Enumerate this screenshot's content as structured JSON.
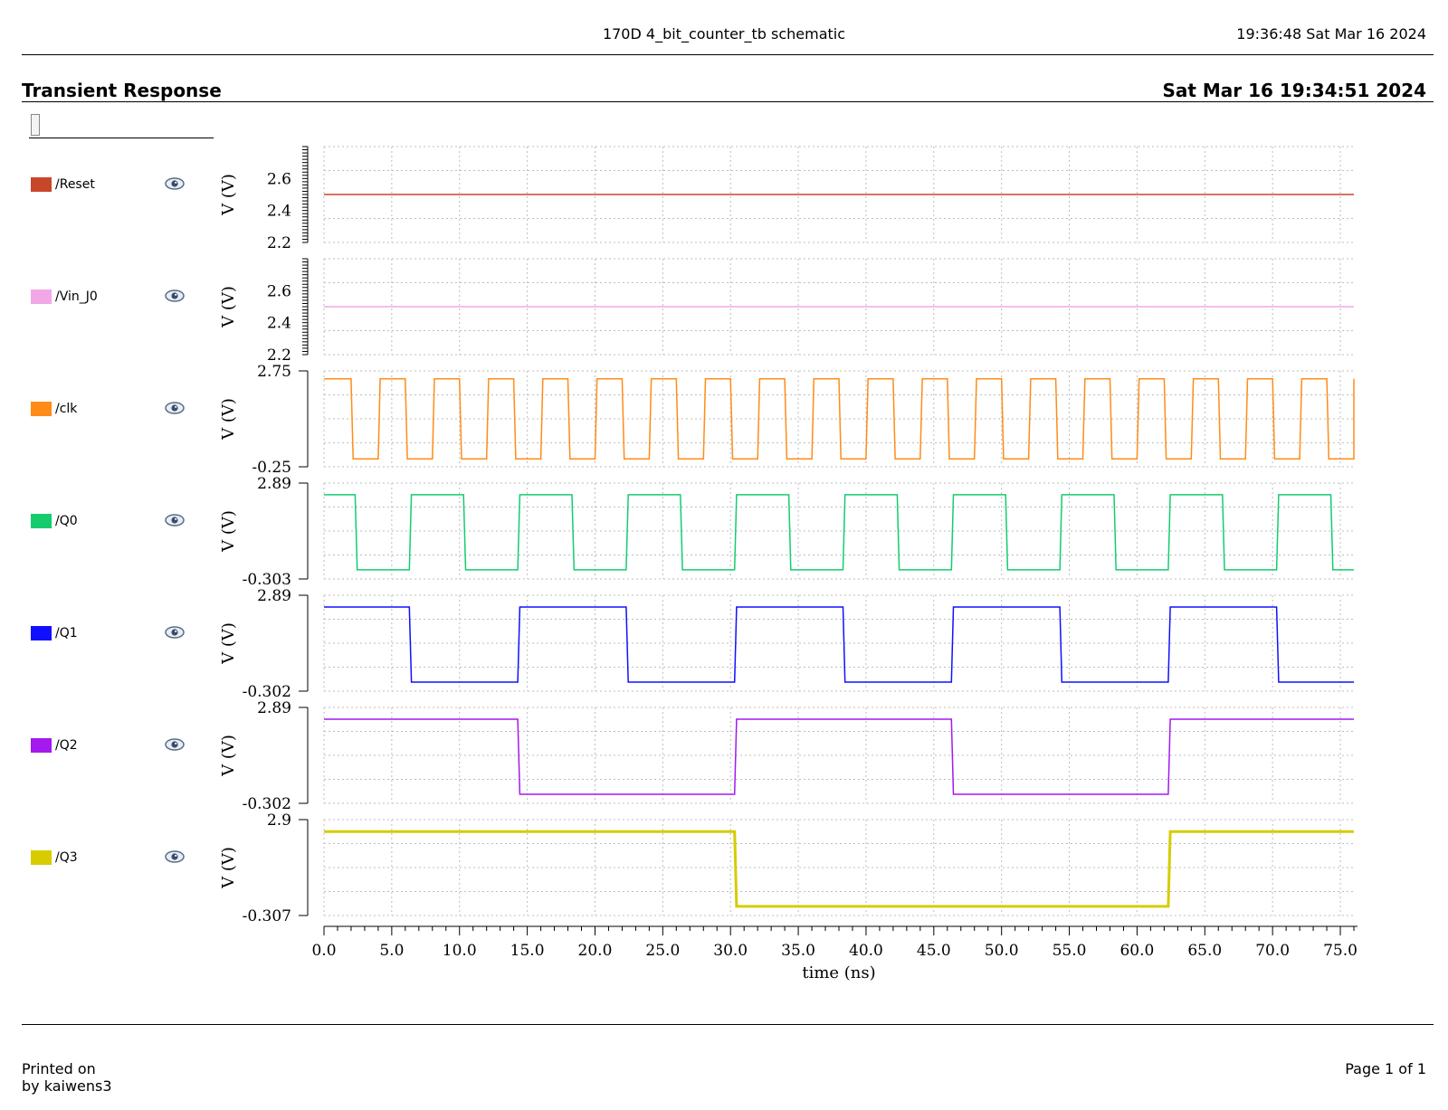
{
  "header": {
    "title": "170D 4_bit_counter_tb schematic",
    "timestamp": "19:36:48  Sat Mar 16 2024"
  },
  "panel": {
    "title": "Transient Response",
    "date": "Sat Mar 16 19:34:51 2024"
  },
  "footer": {
    "printed_on": "Printed on",
    "printed_by": "by kaiwens3",
    "page": "Page 1 of 1"
  },
  "chart_data": {
    "type": "line",
    "xlabel": "time (ns)",
    "xlim": [
      0,
      76
    ],
    "xticks": [
      "0.0",
      "5.0",
      "10.0",
      "15.0",
      "20.0",
      "25.0",
      "30.0",
      "35.0",
      "40.0",
      "45.0",
      "50.0",
      "55.0",
      "60.0",
      "65.0",
      "70.0",
      "75.0"
    ],
    "xtick_values": [
      0,
      5,
      10,
      15,
      20,
      25,
      30,
      35,
      40,
      45,
      50,
      55,
      60,
      65,
      70,
      75
    ],
    "grid": true,
    "legend": "left",
    "series": [
      {
        "name": "/Reset",
        "color": "#c8472b",
        "ylabel": "V (V)",
        "ylim": [
          2.2,
          2.8
        ],
        "ytick_labels": [
          "2.2",
          "2.4",
          "2.6"
        ],
        "ytick_values": [
          2.2,
          2.4,
          2.6
        ],
        "high": 2.5,
        "low": 2.5,
        "transitions": [],
        "start": "high"
      },
      {
        "name": "/Vin_J0",
        "color": "#f2a8e6",
        "ylabel": "V (V)",
        "ylim": [
          2.2,
          2.8
        ],
        "ytick_labels": [
          "2.2",
          "2.4",
          "2.6"
        ],
        "ytick_values": [
          2.2,
          2.4,
          2.6
        ],
        "high": 2.5,
        "low": 2.5,
        "transitions": [],
        "start": "high"
      },
      {
        "name": "/clk",
        "color": "#ff8c19",
        "ylabel": "V (V)",
        "ylim": [
          -0.25,
          2.75
        ],
        "ytick_labels": [
          "-0.25",
          "2.75"
        ],
        "ytick_values": [
          -0.25,
          2.75
        ],
        "high": 2.5,
        "low": 0,
        "transitions": [
          2,
          4,
          6,
          8,
          10,
          12,
          14,
          16,
          18,
          20,
          22,
          24,
          26,
          28,
          30,
          32,
          34,
          36,
          38,
          40,
          42,
          44,
          46,
          48,
          50,
          52,
          54,
          56,
          58,
          60,
          62,
          64,
          66,
          68,
          70,
          72,
          74,
          76
        ],
        "start": "high"
      },
      {
        "name": "/Q0",
        "color": "#14cc6e",
        "ylabel": "V (V)",
        "ylim": [
          -0.303,
          2.89
        ],
        "ytick_labels": [
          "-0.303",
          "2.89"
        ],
        "ytick_values": [
          -0.303,
          2.89
        ],
        "high": 2.5,
        "low": 0,
        "transitions": [
          2.3,
          6.3,
          10.3,
          14.3,
          18.3,
          22.3,
          26.3,
          30.3,
          34.3,
          38.3,
          42.3,
          46.3,
          50.3,
          54.3,
          58.3,
          62.3,
          66.3,
          70.3,
          74.3
        ],
        "start": "high"
      },
      {
        "name": "/Q1",
        "color": "#1010ff",
        "ylabel": "V (V)",
        "ylim": [
          -0.302,
          2.89
        ],
        "ytick_labels": [
          "-0.302",
          "2.89"
        ],
        "ytick_values": [
          -0.302,
          2.89
        ],
        "high": 2.5,
        "low": 0,
        "transitions": [
          6.3,
          14.3,
          22.3,
          30.3,
          38.3,
          46.3,
          54.3,
          62.3,
          70.3
        ],
        "start": "high"
      },
      {
        "name": "/Q2",
        "color": "#a319ee",
        "ylabel": "V (V)",
        "ylim": [
          -0.302,
          2.89
        ],
        "ytick_labels": [
          "-0.302",
          "2.89"
        ],
        "ytick_values": [
          -0.302,
          2.89
        ],
        "high": 2.5,
        "low": 0,
        "transitions": [
          14.3,
          30.3,
          46.3,
          62.3
        ],
        "start": "high"
      },
      {
        "name": "/Q3",
        "color": "#d6cc00",
        "ylabel": "V (V)",
        "ylim": [
          -0.307,
          2.9
        ],
        "ytick_labels": [
          "-0.307",
          "2.9"
        ],
        "ytick_values": [
          -0.307,
          2.9
        ],
        "high": 2.5,
        "low": 0,
        "transitions": [
          30.3,
          62.3
        ],
        "start": "high"
      }
    ]
  }
}
